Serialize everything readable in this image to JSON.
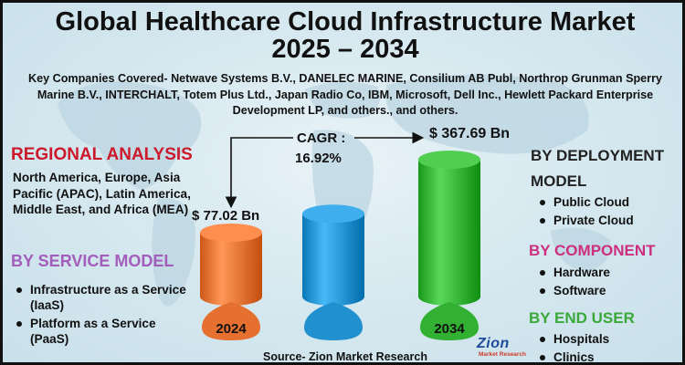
{
  "title_line1": "Global Healthcare Cloud Infrastructure Market",
  "title_line2": "2025 – 2034",
  "companies": "Key Companies Covered- Netwave Systems B.V., DANELEC MARINE, Consilium AB Publ, Northrop Grunman Sperry Marine B.V., INTERCHALT, Totem Plus Ltd., Japan Radio Co, IBM, Microsoft, Dell Inc., Hewlett Packard Enterprise Development LP, and others., and others.",
  "regional": {
    "heading": "REGIONAL ANALYSIS",
    "text": "North America, Europe, Asia Pacific (APAC), Latin America, Middle East, and Africa (MEA)"
  },
  "service_model": {
    "heading": "BY SERVICE MODEL",
    "items": [
      "Infrastructure as a Service (IaaS)",
      "Platform as a Service (PaaS)"
    ]
  },
  "deployment": {
    "heading": "BY DEPLOYMENT MODEL",
    "items": [
      "Public Cloud",
      "Private Cloud"
    ]
  },
  "component": {
    "heading": "BY COMPONENT",
    "items": [
      "Hardware",
      "Software"
    ]
  },
  "end_user": {
    "heading": "BY END USER",
    "items": [
      "Hospitals",
      "Clinics"
    ]
  },
  "cagr": {
    "label": "CAGR :",
    "value": "16.92%"
  },
  "source": "Source- Zion Market Research",
  "logo": {
    "word": "Zion",
    "sub": "Market Research"
  },
  "colors": {
    "bar_2024": "#f07a3a",
    "bar_mid": "#2a9ad8",
    "bar_2034": "#3cba3c",
    "regional": "#cc1a2c",
    "service": "#a35dbb",
    "component": "#cc2f7e",
    "end_user": "#3aa83a"
  },
  "chart_data": {
    "type": "bar",
    "categories": [
      "2024",
      "",
      "2034"
    ],
    "values": [
      77.02,
      null,
      367.69
    ],
    "value_labels": [
      "$ 77.02 Bn",
      "",
      "$ 367.69 Bn"
    ],
    "cagr": "16.92%"
  }
}
